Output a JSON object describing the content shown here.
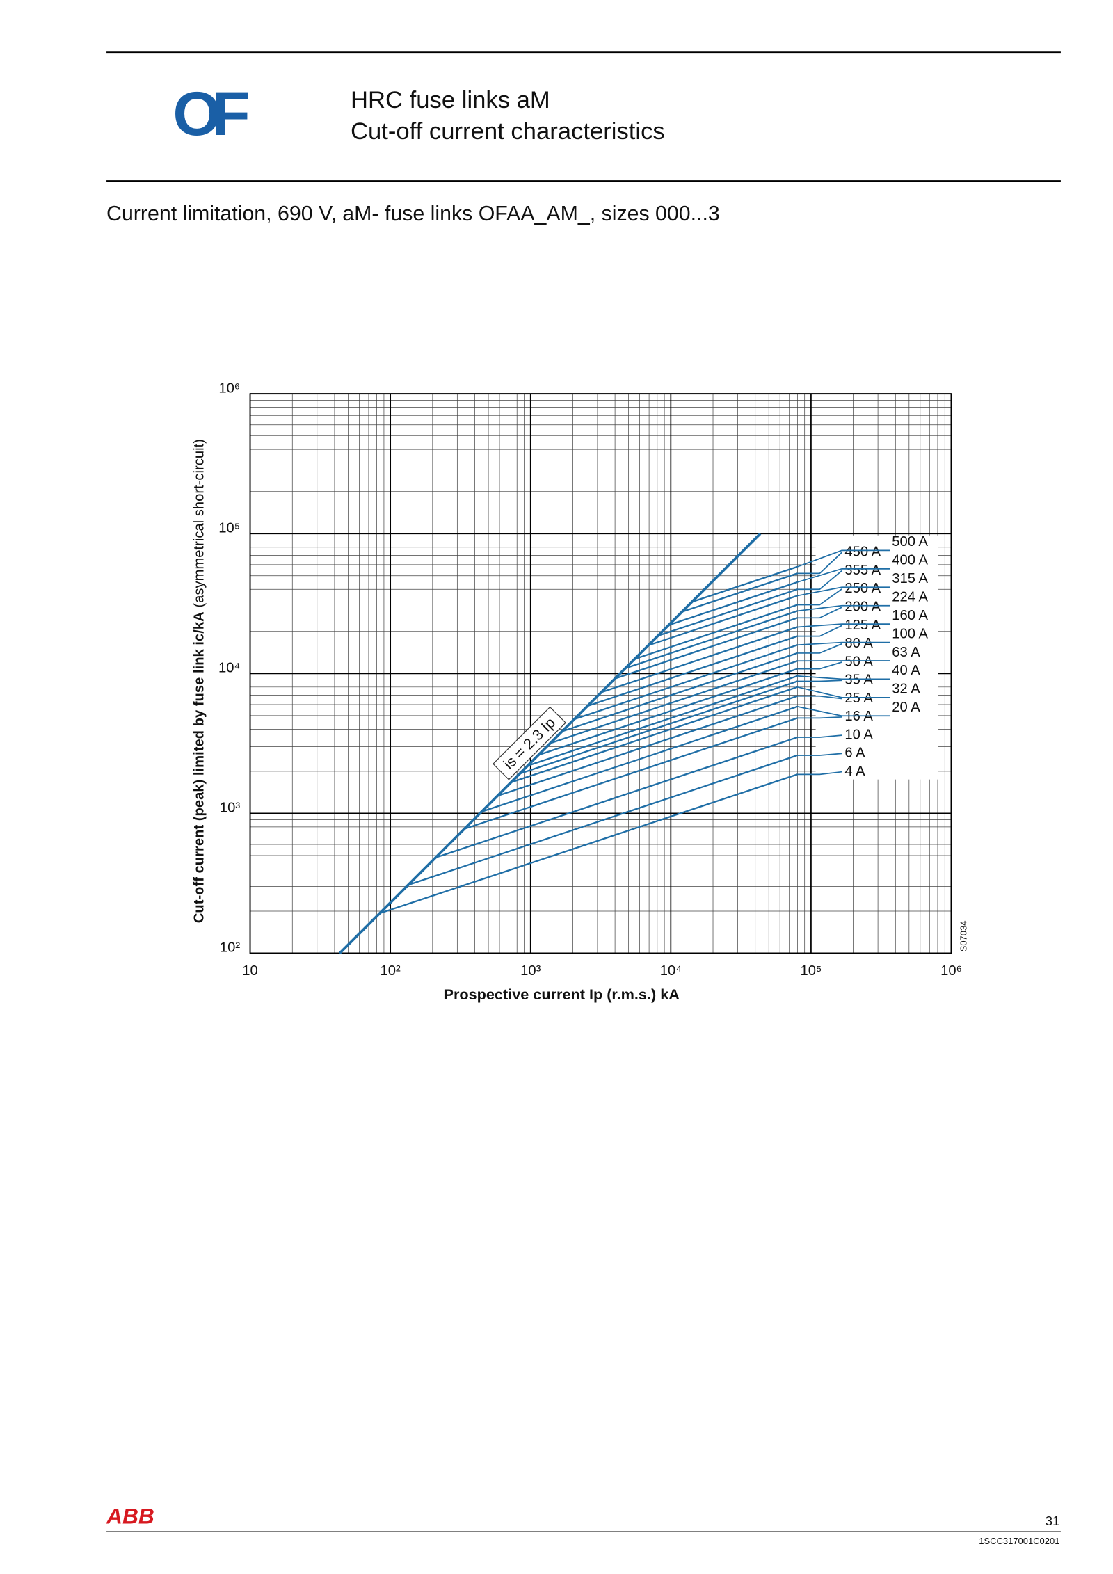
{
  "header": {
    "logo": "OF",
    "title_line1": "HRC fuse links aM",
    "title_line2": "Cut-off current characteristics"
  },
  "subtitle": "Current limitation, 690 V, aM- fuse links OFAA_AM_, sizes 000...3",
  "footer": {
    "brand": "ABB",
    "page_number": "31",
    "doc_code": "1SCC317001C0201"
  },
  "chart_data": {
    "type": "line",
    "x_scale": "log",
    "y_scale": "log",
    "grid": true,
    "color": "#1f6ea6",
    "x_label": "Prospective current Ip (r.m.s.) kA",
    "y_label": "Cut-off current (peak) limited by fuse link ic/kA",
    "y_label_note": "(asymmetrical short-circuit)",
    "code": "S07034",
    "annotation": "is = 2.3 Ip",
    "xlim": [
      10,
      1000000
    ],
    "ylim": [
      100,
      1000000
    ],
    "xticks": [
      10,
      {
        "value": 100,
        "label": "10²"
      },
      {
        "value": 1000,
        "label": "10³"
      },
      {
        "value": 10000,
        "label": "10⁴"
      },
      {
        "value": 100000,
        "label": "10⁵"
      },
      {
        "value": 1000000,
        "label": "10⁶"
      }
    ],
    "yticks": [
      {
        "value": 100,
        "label": "10²"
      },
      {
        "value": 1000,
        "label": "10³"
      },
      {
        "value": 10000,
        "label": "10⁴"
      },
      {
        "value": 100000,
        "label": "10⁵"
      },
      {
        "value": 1000000,
        "label": "10⁶"
      }
    ],
    "envelope": {
      "x": [
        43.5,
        43500
      ],
      "values": [
        100,
        100000
      ]
    },
    "series": [
      {
        "name": "4 A",
        "x": [
          84,
          80000
        ],
        "values": [
          193,
          1900
        ]
      },
      {
        "name": "6 A",
        "x": [
          134,
          80000
        ],
        "values": [
          308,
          2600
        ]
      },
      {
        "name": "10 A",
        "x": [
          210,
          80000
        ],
        "values": [
          483,
          3500
        ]
      },
      {
        "name": "16 A",
        "x": [
          337,
          80000
        ],
        "values": [
          775,
          4800
        ]
      },
      {
        "name": "20 A",
        "x": [
          447,
          80000
        ],
        "values": [
          1028,
          5800
        ]
      },
      {
        "name": "25 A",
        "x": [
          580,
          80000
        ],
        "values": [
          1334,
          6900
        ]
      },
      {
        "name": "32 A",
        "x": [
          724,
          80000
        ],
        "values": [
          1665,
          8000
        ]
      },
      {
        "name": "35 A",
        "x": [
          835,
          80000
        ],
        "values": [
          1921,
          8800
        ]
      },
      {
        "name": "40 A",
        "x": [
          952,
          80000
        ],
        "values": [
          2190,
          9600
        ]
      },
      {
        "name": "50 A",
        "x": [
          1136,
          80000
        ],
        "values": [
          2613,
          10800
        ]
      },
      {
        "name": "63 A",
        "x": [
          1381,
          80000
        ],
        "values": [
          3176,
          12300
        ]
      },
      {
        "name": "80 A",
        "x": [
          1676,
          80000
        ],
        "values": [
          3855,
          14000
        ]
      },
      {
        "name": "100 A",
        "x": [
          2049,
          80000
        ],
        "values": [
          4713,
          16000
        ]
      },
      {
        "name": "125 A",
        "x": [
          2547,
          80000
        ],
        "values": [
          5858,
          18500
        ]
      },
      {
        "name": "160 A",
        "x": [
          3190,
          80000
        ],
        "values": [
          7337,
          21500
        ]
      },
      {
        "name": "200 A",
        "x": [
          4000,
          80000
        ],
        "values": [
          9200,
          25000
        ]
      },
      {
        "name": "224 A",
        "x": [
          4743,
          80000
        ],
        "values": [
          10909,
          28000
        ]
      },
      {
        "name": "250 A",
        "x": [
          5524,
          80000
        ],
        "values": [
          12705,
          31000
        ]
      },
      {
        "name": "315 A",
        "x": [
          6913,
          80000
        ],
        "values": [
          15900,
          36000
        ]
      },
      {
        "name": "355 A",
        "x": [
          8096,
          80000
        ],
        "values": [
          18621,
          40000
        ]
      },
      {
        "name": "400 A",
        "x": [
          9661,
          80000
        ],
        "values": [
          22220,
          45000
        ]
      },
      {
        "name": "450 A",
        "x": [
          12002,
          80000
        ],
        "values": [
          27605,
          52000
        ]
      },
      {
        "name": "500 A",
        "x": [
          14138,
          80000
        ],
        "values": [
          32517,
          58000
        ]
      }
    ]
  }
}
